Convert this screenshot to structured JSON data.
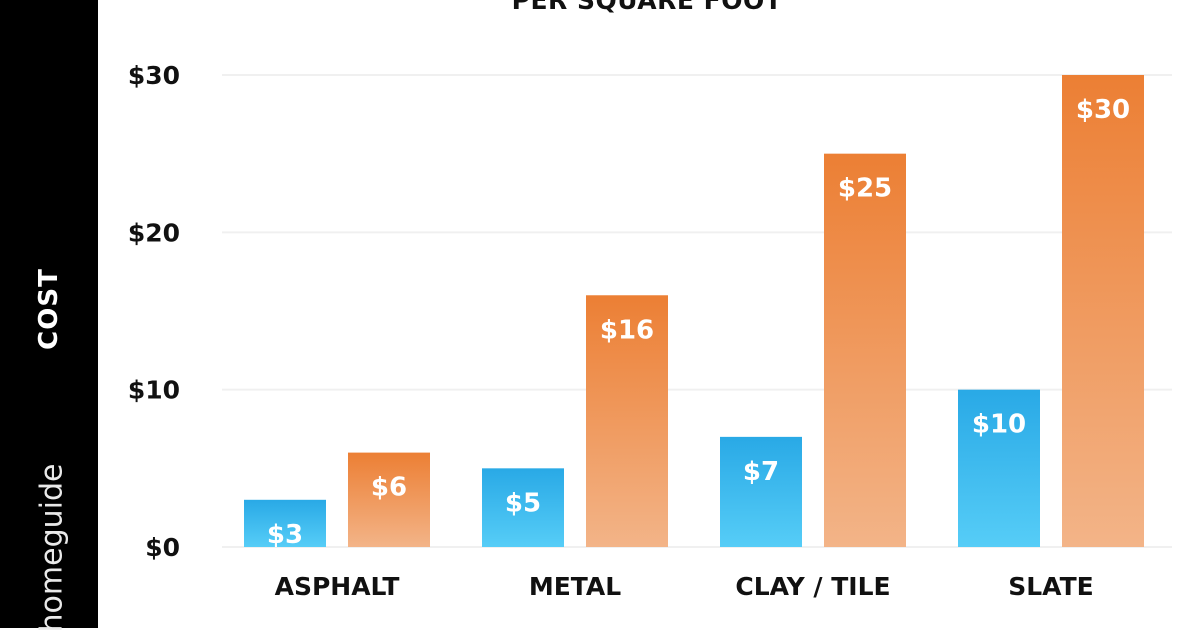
{
  "sidebar": {
    "label": "COST",
    "brand": "homeguide"
  },
  "chart_data": {
    "type": "bar",
    "title": "PER SQUARE FOOT",
    "ylabel": "COST",
    "xlabel": "",
    "ylim": [
      0,
      30
    ],
    "yticks": [
      {
        "value": 0,
        "label": "$0"
      },
      {
        "value": 10,
        "label": "$10"
      },
      {
        "value": 20,
        "label": "$20"
      },
      {
        "value": 30,
        "label": "$30"
      }
    ],
    "grid": true,
    "categories": [
      "ASPHALT",
      "METAL",
      "CLAY / TILE",
      "SLATE"
    ],
    "series": [
      {
        "color": "#3bb9ee",
        "values": [
          3,
          5,
          7,
          10
        ],
        "labels": [
          "$3",
          "$5",
          "$7",
          "$10"
        ]
      },
      {
        "color": "#ee8a44",
        "values": [
          6,
          16,
          25,
          30
        ],
        "labels": [
          "$6",
          "$16",
          "$25",
          "$30"
        ]
      }
    ]
  }
}
